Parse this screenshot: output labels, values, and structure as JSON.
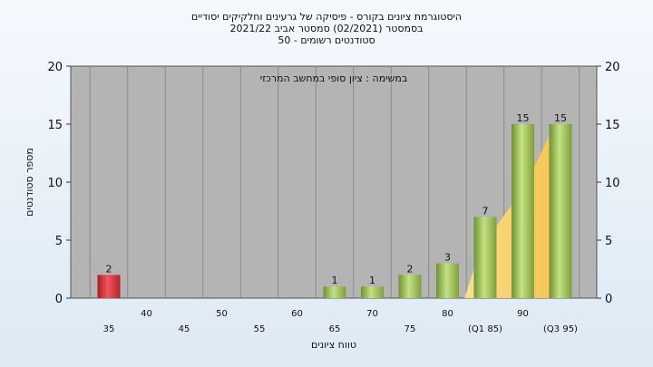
{
  "chart_data": {
    "type": "bar",
    "title_lines": [
      "היסטוגרמת ציונים בקורס - פיסיקה של גרעינים וחלקיקים יסודיים",
      "בסמסטר   (02/2021)  סמסטר אביב 2021/22",
      "סטודנטים רשומים - 50"
    ],
    "annotation": "במשימה : ציון סופי במחשב המרכזי",
    "xlabel": "טווח ציונים",
    "ylabel": "מספר סטודנטים",
    "ylim": [
      0,
      20
    ],
    "yticks": [
      0,
      5,
      10,
      15,
      20
    ],
    "categories": [
      "35",
      "40",
      "45",
      "50",
      "55",
      "60",
      "65",
      "70",
      "75",
      "80",
      "(Q1 85)",
      "90",
      "(Q3 95)"
    ],
    "values": [
      2,
      0,
      0,
      0,
      0,
      0,
      1,
      1,
      2,
      3,
      7,
      15,
      15
    ],
    "value_labels": [
      "2",
      "",
      "",
      "",
      "",
      "",
      "1",
      "1",
      "2",
      "3",
      "7",
      "15",
      "15"
    ],
    "colors": {
      "low_bar": "#e0323a",
      "bar": "#9cc55a",
      "plot_bg": "#b4b4b4",
      "band": "#ffd24a"
    },
    "grid": "vertical",
    "legend": "none"
  }
}
